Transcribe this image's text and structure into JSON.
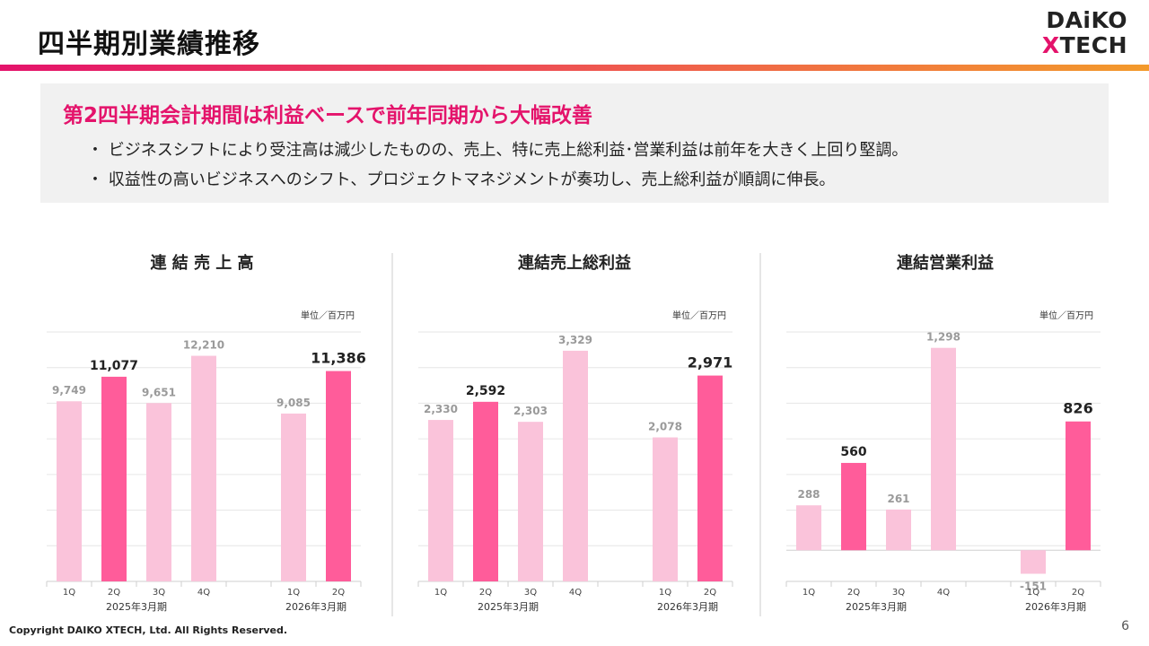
{
  "page": {
    "title": "四半期別業績推移",
    "page_number": "6",
    "copyright": "Copyright DAIKO XTECH, Ltd. All Rights Reserved."
  },
  "logo": {
    "line1": "DAiKO",
    "line2_x": "X",
    "line2_rest": "TECH"
  },
  "summary": {
    "headline": "第2四半期会計期間は利益ベースで前年同期から大幅改善",
    "bullets": [
      "・ ビジネスシフトにより受注高は減少したものの、売上、特に売上総利益･営業利益は前年を大きく上回り堅調。",
      "・ 収益性の高いビジネスへのシフト、プロジェクトマネジメントが奏功し、売上総利益が順調に伸長。"
    ]
  },
  "colors": {
    "light_bar": "#fac3da",
    "dark_bar": "#ff5c9a",
    "label_light": "#9a9a9a",
    "label_dark": "#222222",
    "grid": "#e6e6e6"
  },
  "chart_data": [
    {
      "type": "bar",
      "title": "連 結 売 上 高",
      "unit": "単位／百万円",
      "categories": [
        "1Q",
        "2Q",
        "3Q",
        "4Q",
        "1Q",
        "2Q"
      ],
      "groups": [
        "2025年3月期",
        "2026年3月期"
      ],
      "values": [
        9749,
        11077,
        9651,
        12210,
        9085,
        11386
      ],
      "value_labels": [
        "9,749",
        "11,077",
        "9,651",
        "12,210",
        "9,085",
        "11,386"
      ],
      "highlight": [
        false,
        true,
        false,
        false,
        false,
        true
      ],
      "ylim": [
        0,
        13500
      ]
    },
    {
      "type": "bar",
      "title": "連結売上総利益",
      "unit": "単位／百万円",
      "categories": [
        "1Q",
        "2Q",
        "3Q",
        "4Q",
        "1Q",
        "2Q"
      ],
      "groups": [
        "2025年3月期",
        "2026年3月期"
      ],
      "values": [
        2330,
        2592,
        2303,
        3329,
        2078,
        2971
      ],
      "value_labels": [
        "2,330",
        "2,592",
        "2,303",
        "3,329",
        "2,078",
        "2,971"
      ],
      "highlight": [
        false,
        true,
        false,
        false,
        false,
        true
      ],
      "ylim": [
        0,
        3600
      ]
    },
    {
      "type": "bar",
      "title": "連結営業利益",
      "unit": "単位／百万円",
      "categories": [
        "1Q",
        "2Q",
        "3Q",
        "4Q",
        "1Q",
        "2Q"
      ],
      "groups": [
        "2025年3月期",
        "2026年3月期"
      ],
      "values": [
        288,
        560,
        261,
        1298,
        -151,
        826
      ],
      "value_labels": [
        "288",
        "560",
        "261",
        "1,298",
        "-151",
        "826"
      ],
      "highlight": [
        false,
        true,
        false,
        false,
        false,
        true
      ],
      "ylim": [
        -200,
        1400
      ]
    }
  ]
}
